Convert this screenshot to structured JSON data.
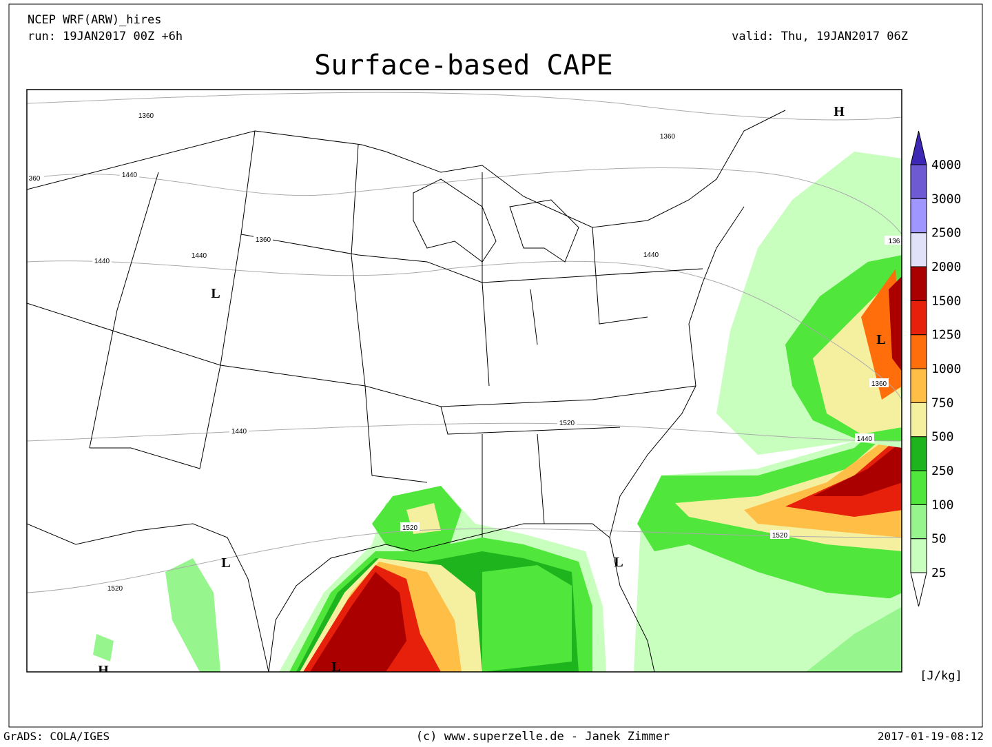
{
  "header": {
    "model": "NCEP WRF(ARW)_hires",
    "run": "run: 19JAN2017 00Z +6h",
    "valid": "valid: Thu, 19JAN2017 06Z",
    "title": "Surface-based CAPE"
  },
  "colorbar": {
    "levels": [
      25,
      50,
      100,
      250,
      500,
      750,
      1000,
      1250,
      1500,
      2000,
      2500,
      3000,
      4000
    ],
    "colors": [
      "#ffffff",
      "#c8ffbe",
      "#96f58c",
      "#50e63c",
      "#1eb41e",
      "#f5f0a0",
      "#ffbe46",
      "#ff6e0a",
      "#e6200a",
      "#aa0000",
      "#e1e1fa",
      "#a096ff",
      "#6e5ad2",
      "#3c28b4"
    ],
    "unit": "[J/kg]"
  },
  "map": {
    "contour_labels": [
      1360,
      1360,
      360,
      1440,
      1360,
      1440,
      1440,
      1440,
      136,
      1360,
      1440,
      1520,
      1440,
      1520,
      1520,
      1520
    ],
    "pressure_centers": [
      "H",
      "L",
      "L",
      "L",
      "L",
      "H",
      "L"
    ]
  },
  "footer": {
    "left": "GrADS: COLA/IGES",
    "center": "(c) www.superzelle.de - Janek Zimmer",
    "right": "2017-01-19-08:12"
  }
}
